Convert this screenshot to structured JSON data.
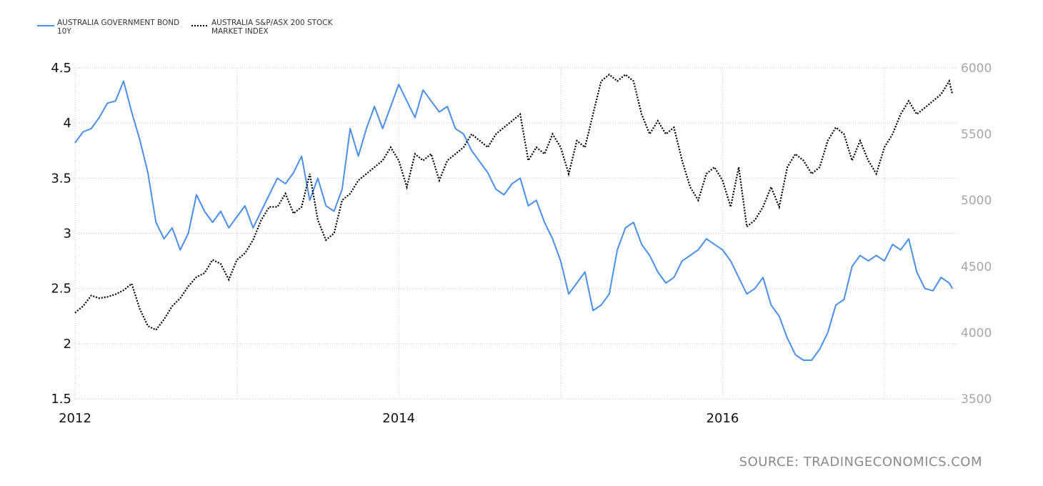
{
  "chart_data": {
    "type": "line",
    "legend_position": "top-left",
    "grid": true,
    "source": "SOURCE: TRADINGECONOMICS.COM",
    "x_ticks": [
      {
        "label": "2012",
        "value": 2012.0
      },
      {
        "label": "2014",
        "value": 2014.0
      },
      {
        "label": "2016",
        "value": 2016.0
      }
    ],
    "xlim": [
      2012.0,
      2017.45
    ],
    "y_left": {
      "lim": [
        1.5,
        4.5
      ],
      "ticks": [
        "1.5",
        "2",
        "2.5",
        "3",
        "3.5",
        "4",
        "4.5"
      ],
      "color": "#111111"
    },
    "y_right": {
      "lim": [
        3500,
        6000
      ],
      "ticks": [
        "3500",
        "4000",
        "4500",
        "5000",
        "5500",
        "6000"
      ],
      "color": "#a6a6a6"
    },
    "series": [
      {
        "name": "AUSTRALIA GOVERNMENT BOND 10Y",
        "legend_lines": [
          "AUSTRALIA GOVERNMENT BOND",
          "10Y"
        ],
        "axis": "left",
        "color": "#4a8fe7",
        "style": "solid",
        "x": [
          2012.0,
          2012.05,
          2012.1,
          2012.15,
          2012.2,
          2012.25,
          2012.3,
          2012.35,
          2012.4,
          2012.45,
          2012.5,
          2012.55,
          2012.6,
          2012.65,
          2012.7,
          2012.75,
          2012.8,
          2012.85,
          2012.9,
          2012.95,
          2013.0,
          2013.05,
          2013.1,
          2013.15,
          2013.2,
          2013.25,
          2013.3,
          2013.35,
          2013.4,
          2013.45,
          2013.5,
          2013.55,
          2013.6,
          2013.65,
          2013.7,
          2013.75,
          2013.8,
          2013.85,
          2013.9,
          2013.95,
          2014.0,
          2014.05,
          2014.1,
          2014.15,
          2014.2,
          2014.25,
          2014.3,
          2014.35,
          2014.4,
          2014.45,
          2014.5,
          2014.55,
          2014.6,
          2014.65,
          2014.7,
          2014.75,
          2014.8,
          2014.85,
          2014.9,
          2014.95,
          2015.0,
          2015.05,
          2015.1,
          2015.15,
          2015.2,
          2015.25,
          2015.3,
          2015.35,
          2015.4,
          2015.45,
          2015.5,
          2015.55,
          2015.6,
          2015.65,
          2015.7,
          2015.75,
          2015.8,
          2015.85,
          2015.9,
          2015.95,
          2016.0,
          2016.05,
          2016.1,
          2016.15,
          2016.2,
          2016.25,
          2016.3,
          2016.35,
          2016.4,
          2016.45,
          2016.5,
          2016.55,
          2016.6,
          2016.65,
          2016.7,
          2016.75,
          2016.8,
          2016.85,
          2016.9,
          2016.95,
          2017.0,
          2017.05,
          2017.1,
          2017.15,
          2017.2,
          2017.25,
          2017.3,
          2017.35,
          2017.4,
          2017.42
        ],
        "values": [
          3.82,
          3.92,
          3.95,
          4.05,
          4.18,
          4.2,
          4.38,
          4.1,
          3.85,
          3.55,
          3.1,
          2.95,
          3.05,
          2.85,
          3.0,
          3.35,
          3.2,
          3.1,
          3.2,
          3.05,
          3.15,
          3.25,
          3.05,
          3.2,
          3.35,
          3.5,
          3.45,
          3.55,
          3.7,
          3.3,
          3.5,
          3.25,
          3.2,
          3.4,
          3.95,
          3.7,
          3.95,
          4.15,
          3.95,
          4.15,
          4.35,
          4.2,
          4.05,
          4.3,
          4.2,
          4.1,
          4.15,
          3.95,
          3.9,
          3.75,
          3.65,
          3.55,
          3.4,
          3.35,
          3.45,
          3.5,
          3.25,
          3.3,
          3.1,
          2.95,
          2.75,
          2.45,
          2.55,
          2.65,
          2.3,
          2.35,
          2.45,
          2.85,
          3.05,
          3.1,
          2.9,
          2.8,
          2.65,
          2.55,
          2.6,
          2.75,
          2.8,
          2.85,
          2.95,
          2.9,
          2.85,
          2.75,
          2.6,
          2.45,
          2.5,
          2.6,
          2.35,
          2.25,
          2.05,
          1.9,
          1.85,
          1.85,
          1.95,
          2.1,
          2.35,
          2.4,
          2.7,
          2.8,
          2.75,
          2.8,
          2.75,
          2.9,
          2.85,
          2.95,
          2.65,
          2.5,
          2.48,
          2.6,
          2.55,
          2.5
        ]
      },
      {
        "name": "AUSTRALIA S&P/ASX 200 STOCK MARKET INDEX",
        "legend_lines": [
          "AUSTRALIA S&P/ASX 200 STOCK",
          "MARKET INDEX"
        ],
        "axis": "right",
        "color": "#000000",
        "style": "dotted",
        "x": [
          2012.0,
          2012.05,
          2012.1,
          2012.15,
          2012.2,
          2012.25,
          2012.3,
          2012.35,
          2012.4,
          2012.45,
          2012.5,
          2012.55,
          2012.6,
          2012.65,
          2012.7,
          2012.75,
          2012.8,
          2012.85,
          2012.9,
          2012.95,
          2013.0,
          2013.05,
          2013.1,
          2013.15,
          2013.2,
          2013.25,
          2013.3,
          2013.35,
          2013.4,
          2013.45,
          2013.5,
          2013.55,
          2013.6,
          2013.65,
          2013.7,
          2013.75,
          2013.8,
          2013.85,
          2013.9,
          2013.95,
          2014.0,
          2014.05,
          2014.1,
          2014.15,
          2014.2,
          2014.25,
          2014.3,
          2014.35,
          2014.4,
          2014.45,
          2014.5,
          2014.55,
          2014.6,
          2014.65,
          2014.7,
          2014.75,
          2014.8,
          2014.85,
          2014.9,
          2014.95,
          2015.0,
          2015.05,
          2015.1,
          2015.15,
          2015.2,
          2015.25,
          2015.3,
          2015.35,
          2015.4,
          2015.45,
          2015.5,
          2015.55,
          2015.6,
          2015.65,
          2015.7,
          2015.75,
          2015.8,
          2015.85,
          2015.9,
          2015.95,
          2016.0,
          2016.05,
          2016.1,
          2016.15,
          2016.2,
          2016.25,
          2016.3,
          2016.35,
          2016.4,
          2016.45,
          2016.5,
          2016.55,
          2016.6,
          2016.65,
          2016.7,
          2016.75,
          2016.8,
          2016.85,
          2016.9,
          2016.95,
          2017.0,
          2017.05,
          2017.1,
          2017.15,
          2017.2,
          2017.25,
          2017.3,
          2017.35,
          2017.4,
          2017.42
        ],
        "values": [
          4150,
          4200,
          4280,
          4260,
          4270,
          4290,
          4320,
          4370,
          4180,
          4050,
          4020,
          4100,
          4200,
          4260,
          4350,
          4420,
          4450,
          4550,
          4520,
          4400,
          4550,
          4600,
          4700,
          4850,
          4950,
          4950,
          5050,
          4900,
          4950,
          5200,
          4850,
          4700,
          4750,
          5000,
          5050,
          5150,
          5200,
          5250,
          5300,
          5400,
          5300,
          5100,
          5350,
          5300,
          5350,
          5150,
          5300,
          5350,
          5400,
          5500,
          5450,
          5400,
          5500,
          5550,
          5600,
          5650,
          5300,
          5400,
          5350,
          5500,
          5400,
          5200,
          5450,
          5400,
          5650,
          5900,
          5950,
          5900,
          5950,
          5900,
          5650,
          5500,
          5600,
          5500,
          5550,
          5300,
          5100,
          5000,
          5200,
          5250,
          5150,
          4950,
          5250,
          4800,
          4850,
          4950,
          5100,
          4950,
          5250,
          5350,
          5300,
          5200,
          5250,
          5450,
          5550,
          5500,
          5300,
          5450,
          5300,
          5200,
          5400,
          5500,
          5650,
          5750,
          5650,
          5700,
          5750,
          5800,
          5900,
          5800
        ]
      }
    ]
  }
}
